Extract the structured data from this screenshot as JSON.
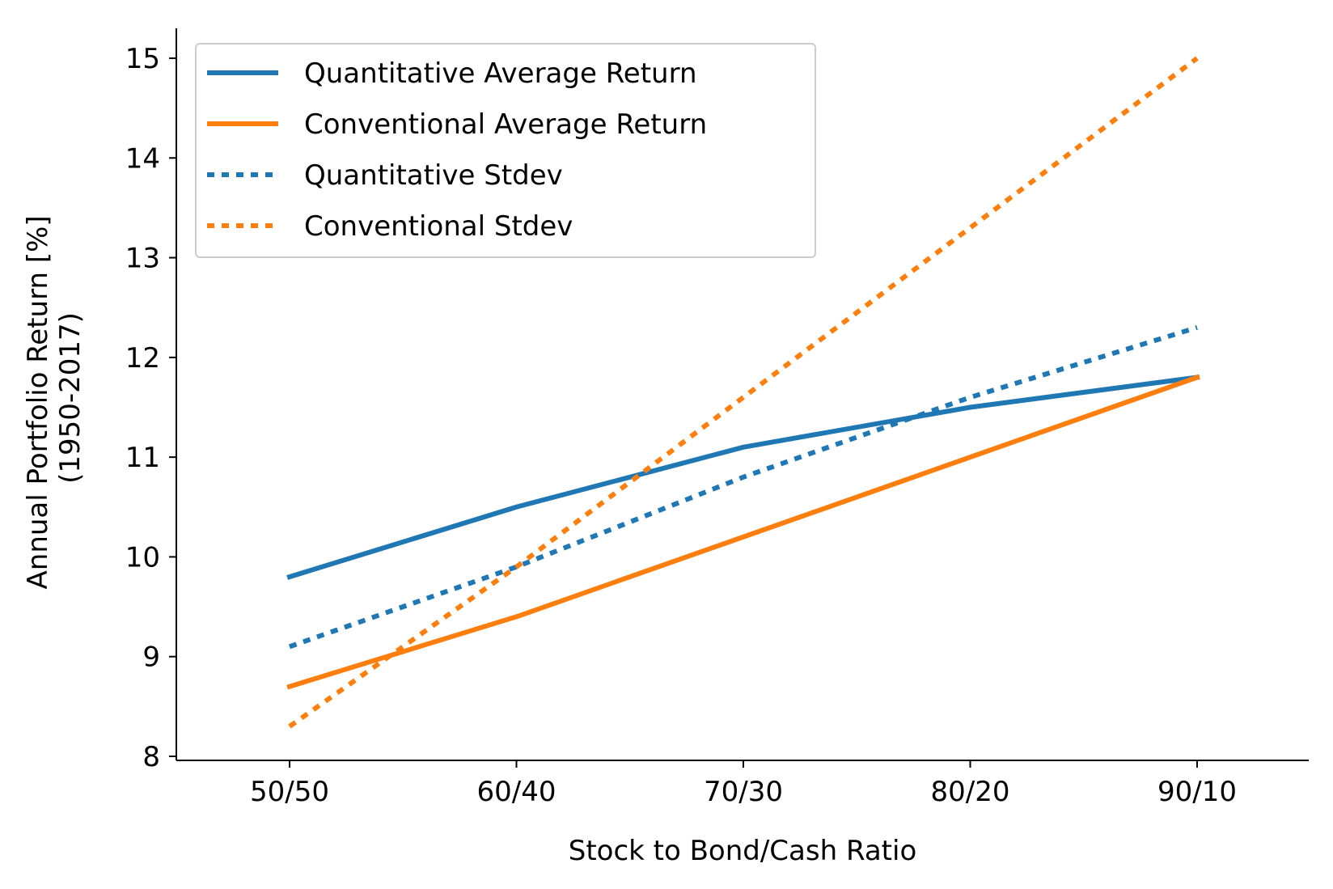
{
  "chart_data": {
    "type": "line",
    "xlabel": "Stock to Bond/Cash Ratio",
    "ylabel_lines": [
      "Annual Portfolio Return [%]",
      "(1950-2017)"
    ],
    "categories": [
      "50/50",
      "60/40",
      "70/30",
      "80/20",
      "90/10"
    ],
    "ylim": [
      8,
      15.3
    ],
    "yticks": [
      8,
      9,
      10,
      11,
      12,
      13,
      14,
      15
    ],
    "grid": false,
    "legend_position": "top-left",
    "series": [
      {
        "name": "Quantitative Average Return",
        "color": "#1f77b4",
        "style": "solid",
        "values": [
          9.8,
          10.5,
          11.1,
          11.5,
          11.8
        ]
      },
      {
        "name": "Conventional Average Return",
        "color": "#ff7f0e",
        "style": "solid",
        "values": [
          8.7,
          9.4,
          10.2,
          11.0,
          11.8
        ]
      },
      {
        "name": "Quantitative Stdev",
        "color": "#1f77b4",
        "style": "dotted",
        "values": [
          9.1,
          9.9,
          10.8,
          11.6,
          12.3
        ]
      },
      {
        "name": "Conventional Stdev",
        "color": "#ff7f0e",
        "style": "dotted",
        "values": [
          8.3,
          9.9,
          11.6,
          13.3,
          15.0
        ]
      }
    ]
  }
}
